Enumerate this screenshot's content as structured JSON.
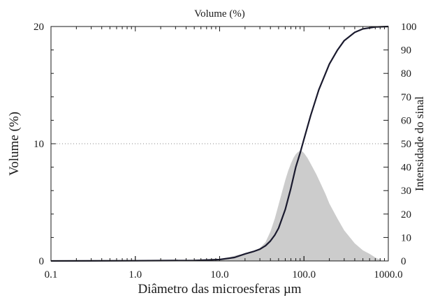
{
  "chart_data": {
    "type": "area",
    "title": "Volume (%)",
    "xlabel": "Diâmetro das microesferas µm",
    "ylabel_left": "Volume (%)",
    "ylabel_right": "Intensidade do sinal",
    "x_scale": "log",
    "xlim": [
      0.1,
      1000
    ],
    "ylim_left": [
      0,
      20
    ],
    "ylim_right": [
      0,
      100
    ],
    "x_ticks": [
      {
        "v": 0.1,
        "label": "0.1"
      },
      {
        "v": 1,
        "label": "1.0"
      },
      {
        "v": 10,
        "label": "10.0"
      },
      {
        "v": 100,
        "label": "100.0"
      },
      {
        "v": 1000,
        "label": "1000.0"
      }
    ],
    "y_ticks_left": [
      {
        "v": 0,
        "label": "0"
      },
      {
        "v": 10,
        "label": "10"
      },
      {
        "v": 20,
        "label": "20"
      }
    ],
    "y_ticks_right": [
      {
        "v": 0,
        "label": "0"
      },
      {
        "v": 10,
        "label": "10"
      },
      {
        "v": 20,
        "label": "20"
      },
      {
        "v": 30,
        "label": "30"
      },
      {
        "v": 40,
        "label": "40"
      },
      {
        "v": 50,
        "label": "50"
      },
      {
        "v": 60,
        "label": "60"
      },
      {
        "v": 70,
        "label": "70"
      },
      {
        "v": 80,
        "label": "80"
      },
      {
        "v": 90,
        "label": "90"
      },
      {
        "v": 100,
        "label": "100"
      }
    ],
    "reference_line": {
      "axis": "left",
      "y": 10,
      "style": "dotted"
    },
    "series": [
      {
        "axis": "left",
        "style": "filled-area",
        "color": "#cccccc",
        "points": [
          [
            8,
            0
          ],
          [
            10,
            0.1
          ],
          [
            13,
            0.3
          ],
          [
            16,
            0.5
          ],
          [
            20,
            0.6
          ],
          [
            25,
            0.8
          ],
          [
            30,
            1.1
          ],
          [
            35,
            1.6
          ],
          [
            40,
            2.5
          ],
          [
            45,
            3.6
          ],
          [
            50,
            4.8
          ],
          [
            55,
            5.9
          ],
          [
            60,
            6.9
          ],
          [
            65,
            7.7
          ],
          [
            70,
            8.3
          ],
          [
            75,
            8.8
          ],
          [
            80,
            9.1
          ],
          [
            85,
            9.3
          ],
          [
            90,
            9.4
          ],
          [
            95,
            9.35
          ],
          [
            100,
            9.2
          ],
          [
            110,
            8.8
          ],
          [
            120,
            8.3
          ],
          [
            140,
            7.4
          ],
          [
            160,
            6.5
          ],
          [
            180,
            5.7
          ],
          [
            200,
            4.9
          ],
          [
            250,
            3.6
          ],
          [
            300,
            2.6
          ],
          [
            400,
            1.5
          ],
          [
            500,
            0.9
          ],
          [
            600,
            0.6
          ],
          [
            700,
            0.3
          ],
          [
            800,
            0.1
          ],
          [
            850,
            0
          ]
        ]
      },
      {
        "axis": "right",
        "style": "line",
        "color": "#1a1a2e",
        "points": [
          [
            0.1,
            0
          ],
          [
            1,
            0.1
          ],
          [
            5,
            0.2
          ],
          [
            10,
            0.6
          ],
          [
            15,
            1.5
          ],
          [
            20,
            3
          ],
          [
            25,
            4
          ],
          [
            30,
            5
          ],
          [
            35,
            6.5
          ],
          [
            40,
            8.5
          ],
          [
            45,
            11
          ],
          [
            50,
            14
          ],
          [
            60,
            22
          ],
          [
            70,
            31
          ],
          [
            80,
            40
          ],
          [
            90,
            46
          ],
          [
            100,
            52
          ],
          [
            120,
            62
          ],
          [
            150,
            73
          ],
          [
            200,
            84
          ],
          [
            250,
            90
          ],
          [
            300,
            94
          ],
          [
            400,
            97.5
          ],
          [
            500,
            99
          ],
          [
            700,
            99.8
          ],
          [
            1000,
            100
          ]
        ]
      }
    ],
    "grid": false,
    "legend": "none"
  }
}
